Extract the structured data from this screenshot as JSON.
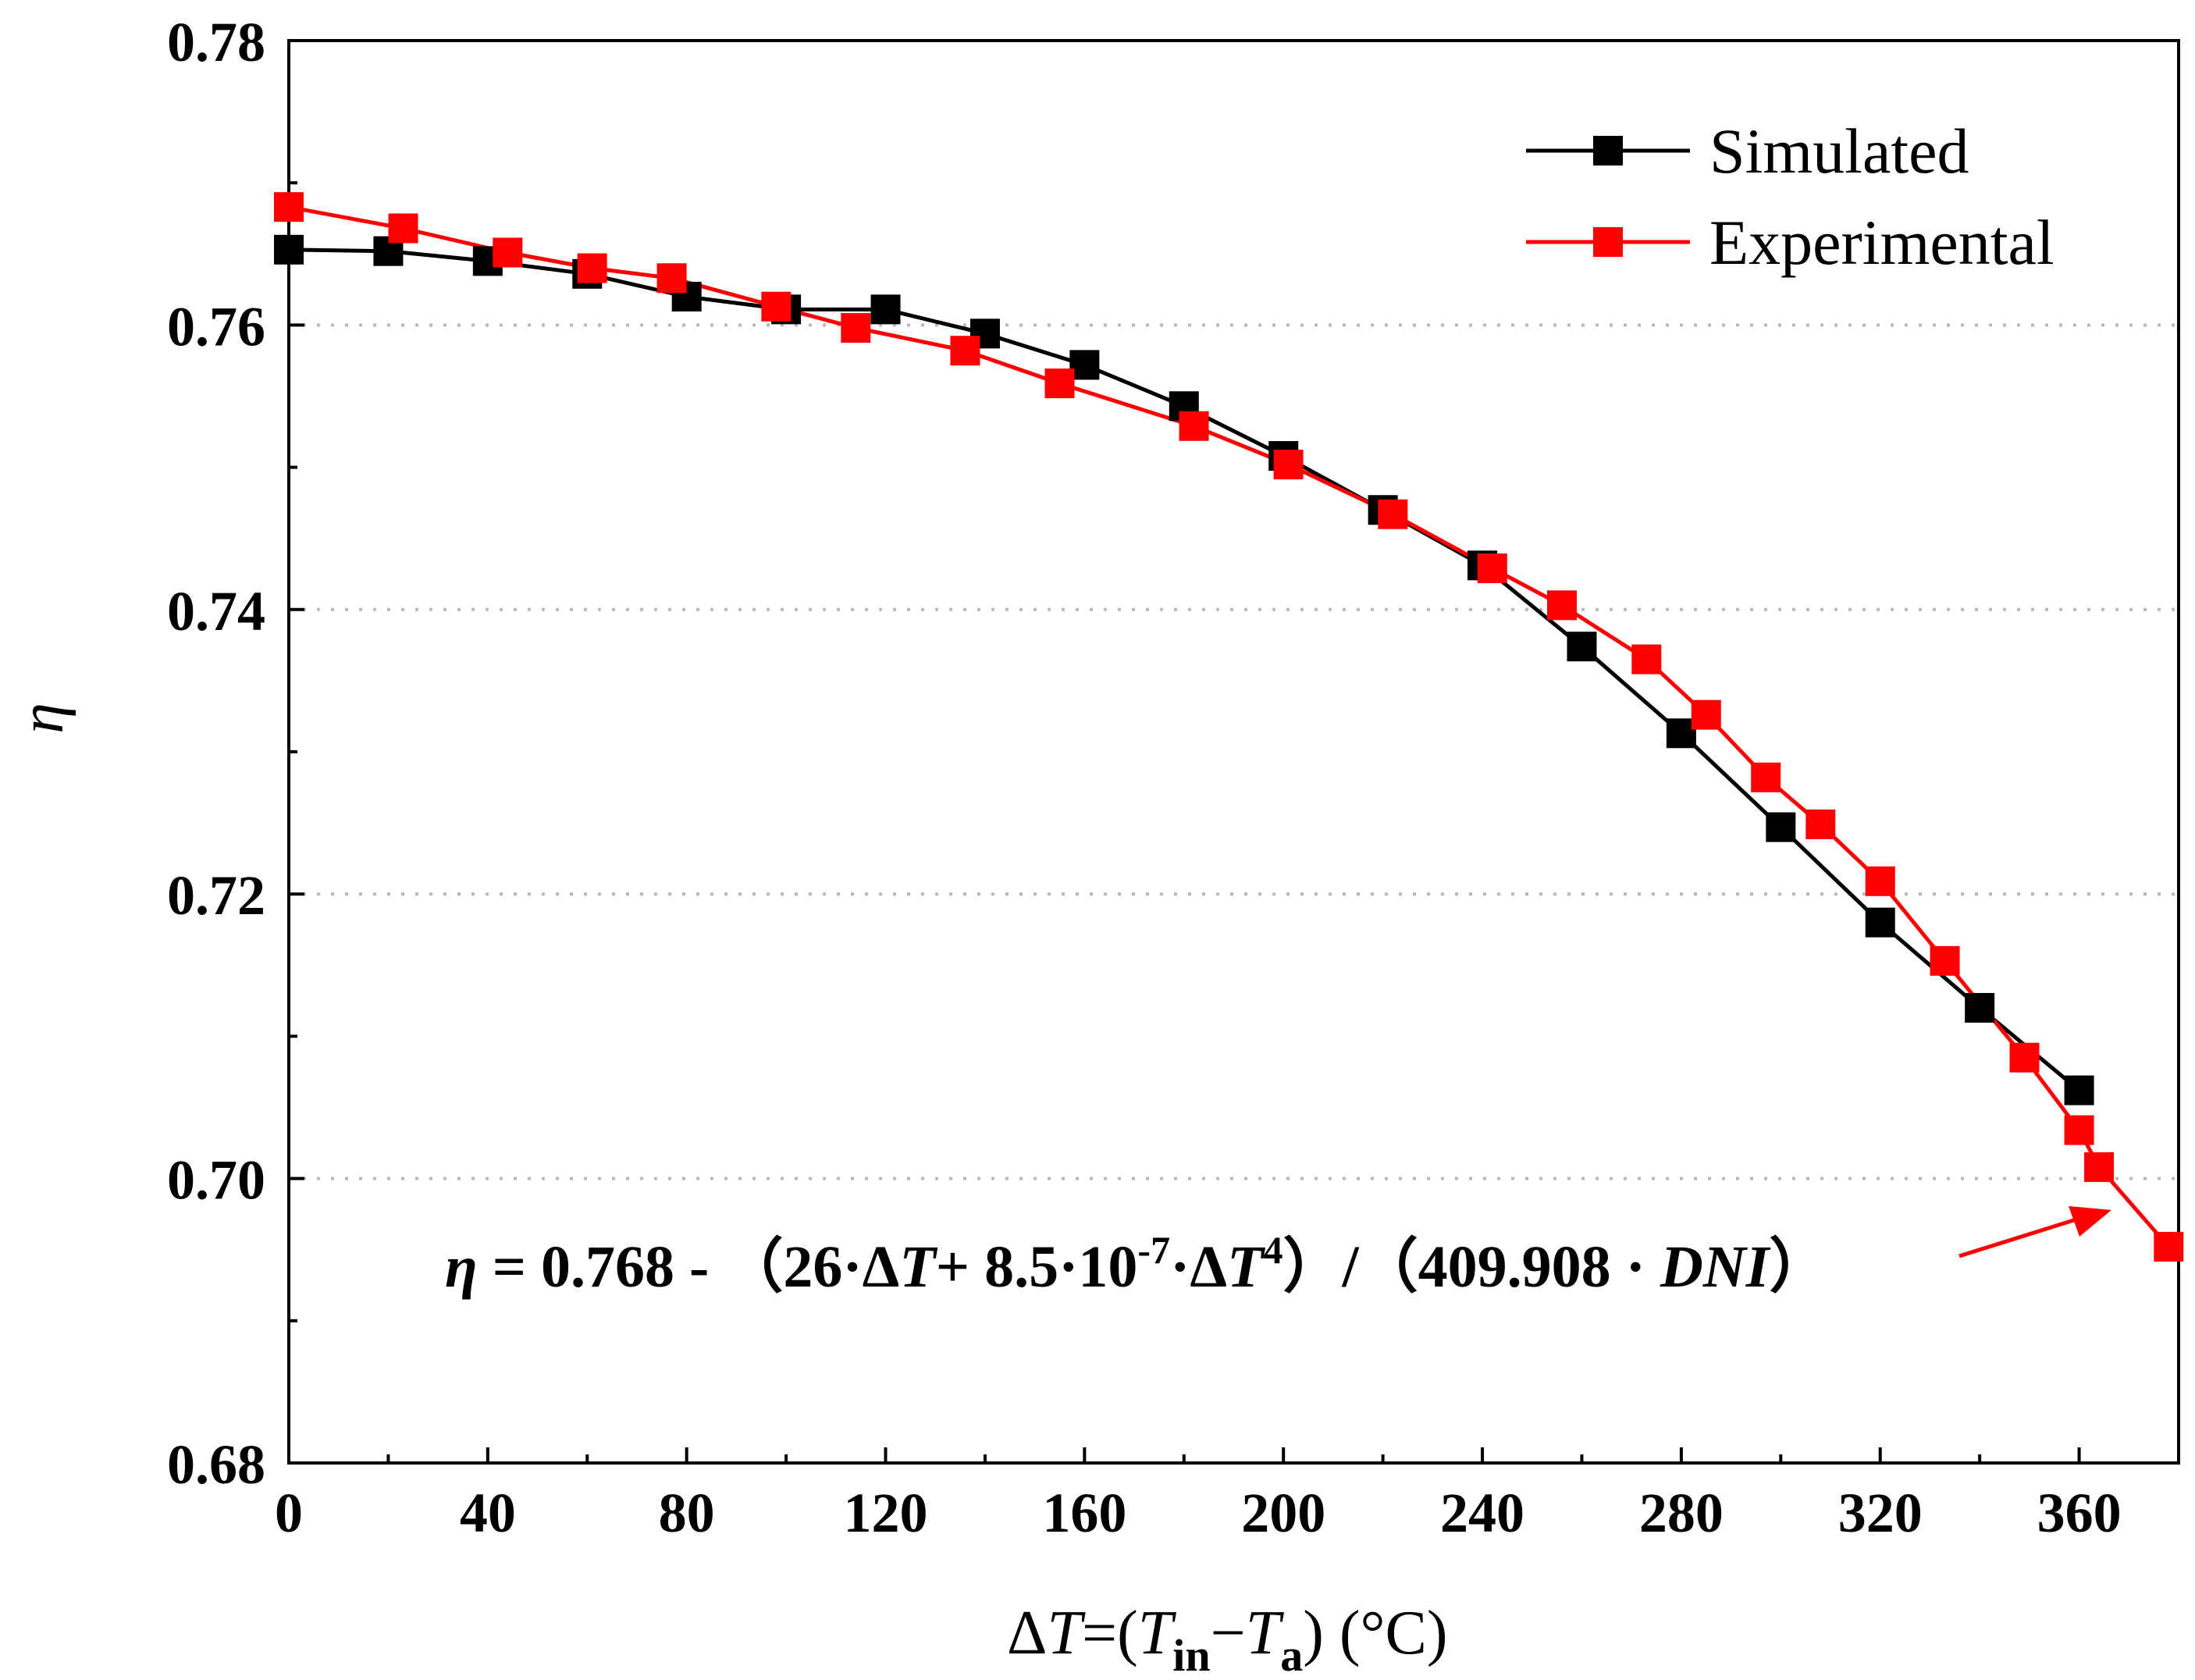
{
  "chart_data": {
    "type": "line",
    "title": "",
    "xlabel": "ΔT=(Tin−Ta) (°C)",
    "xlabel_parts": {
      "delta": "Δ",
      "T": "T",
      "eq": "=(",
      "Tin": "T",
      "in_sub": "in",
      "minus": "−",
      "Ta": "T",
      "a_sub": "a",
      "unit": ") (°C)"
    },
    "ylabel": "η",
    "xlim": [
      0,
      380
    ],
    "ylim": [
      0.68,
      0.78
    ],
    "xticks": [
      "0",
      "40",
      "80",
      "120",
      "160",
      "200",
      "240",
      "280",
      "320",
      "360"
    ],
    "xtick_values": [
      0,
      40,
      80,
      120,
      160,
      200,
      240,
      280,
      320,
      360
    ],
    "xminor": [
      20,
      60,
      100,
      140,
      180,
      220,
      260,
      300,
      340
    ],
    "yticks": [
      "0.68",
      "0.70",
      "0.72",
      "0.74",
      "0.76",
      "0.78"
    ],
    "ytick_values": [
      0.68,
      0.7,
      0.72,
      0.74,
      0.76,
      0.78
    ],
    "yminor": [
      0.69,
      0.71,
      0.73,
      0.75,
      0.77
    ],
    "grid": "horizontal-dotted",
    "legend_position": "top-right",
    "series": [
      {
        "name": "Simulated",
        "color": "#000000",
        "x": [
          0,
          20,
          40,
          60,
          80,
          100,
          120,
          140,
          160,
          180,
          200,
          220,
          240,
          260,
          280,
          300,
          320,
          340,
          360
        ],
        "y": [
          0.7653,
          0.7652,
          0.7645,
          0.7636,
          0.762,
          0.7611,
          0.7611,
          0.7594,
          0.7572,
          0.7543,
          0.7508,
          0.747,
          0.7431,
          0.7374,
          0.7313,
          0.7247,
          0.718,
          0.712,
          0.7062
        ]
      },
      {
        "name": "Experimental",
        "color": "#ff0000",
        "x": [
          0,
          23,
          44,
          61,
          77,
          98,
          114,
          136,
          155,
          182,
          201,
          222,
          242,
          256,
          273,
          285,
          297,
          308,
          320,
          333,
          349,
          360,
          364,
          378
        ],
        "y": [
          0.7683,
          0.7668,
          0.7651,
          0.764,
          0.7633,
          0.7613,
          0.7598,
          0.7582,
          0.7559,
          0.7529,
          0.7502,
          0.7467,
          0.7429,
          0.7403,
          0.7365,
          0.7326,
          0.7282,
          0.7249,
          0.7209,
          0.7153,
          0.7085,
          0.7034,
          0.7008,
          0.6952
        ]
      }
    ],
    "annotation": {
      "eta": "η",
      "eq_1": " = 0.768 - （26·Δ",
      "T1": "T",
      "eq_2": "+ 8.5·10",
      "exp1": "-7",
      "eq_3": "·Δ",
      "T2": "T",
      "exp2": "4",
      "eq_4": "）/（409.908 · ",
      "dni": "DNI",
      "eq_5": "）",
      "arrow_color": "#ff0000"
    }
  }
}
